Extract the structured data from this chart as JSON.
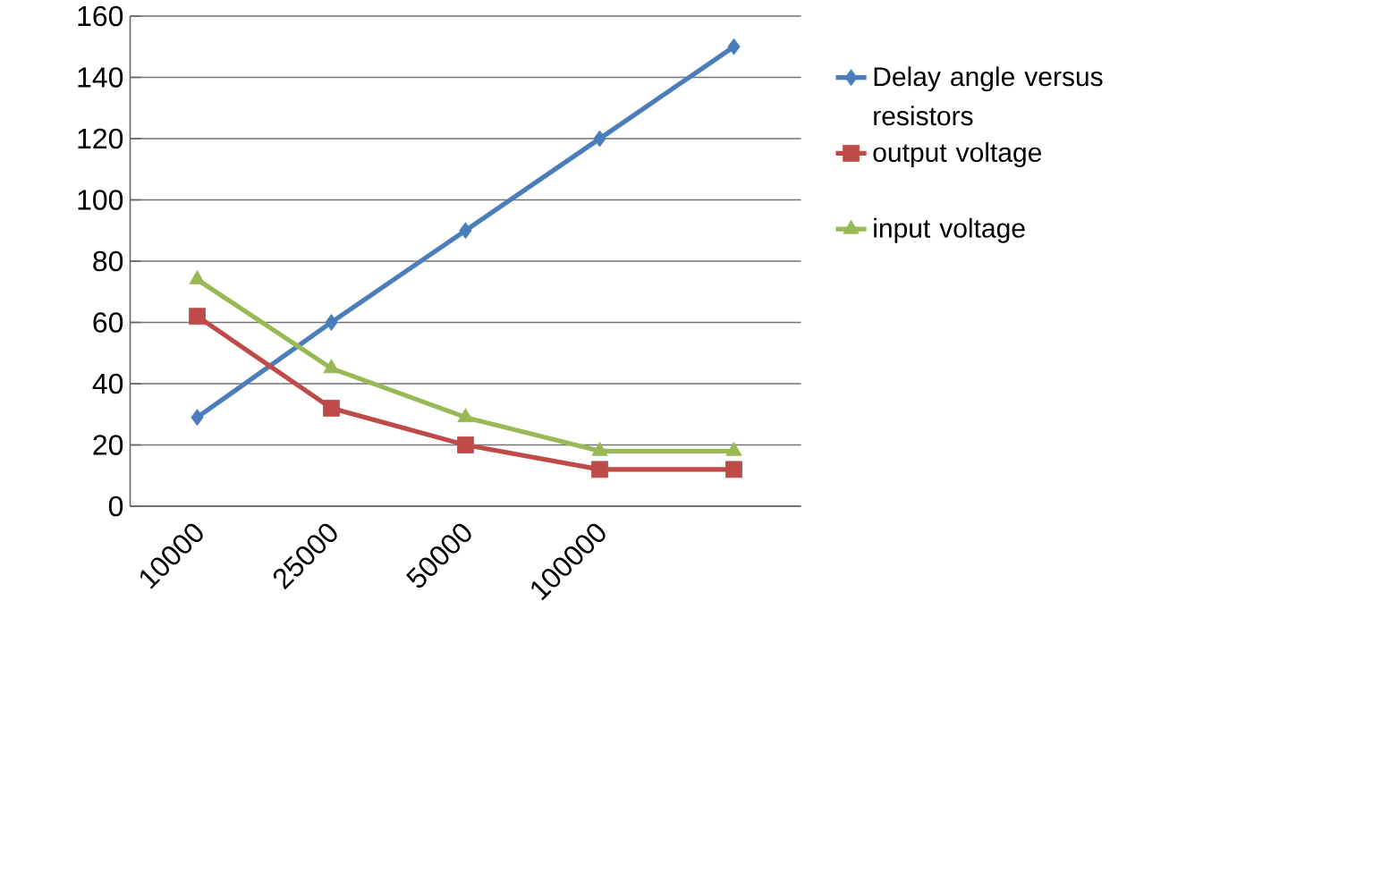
{
  "chart_data": {
    "type": "line",
    "categories": [
      "10000",
      "25000",
      "50000",
      "100000",
      null
    ],
    "series": [
      {
        "name": "Delay angle versus resistors",
        "color": "#4a7ebb",
        "marker": "diamond",
        "values": [
          29,
          60,
          90,
          120,
          150
        ]
      },
      {
        "name": "output voltage",
        "color": "#be4b48",
        "marker": "square",
        "values": [
          62,
          32,
          20,
          12,
          12
        ]
      },
      {
        "name": "input voltage",
        "color": "#98b954",
        "marker": "triangle",
        "values": [
          74,
          45,
          29,
          18,
          18
        ]
      }
    ],
    "ylim": [
      0,
      160
    ],
    "yticks": [
      0,
      20,
      40,
      60,
      80,
      100,
      120,
      140,
      160
    ],
    "grid": "y",
    "legend": "right",
    "line_style": "solid"
  }
}
